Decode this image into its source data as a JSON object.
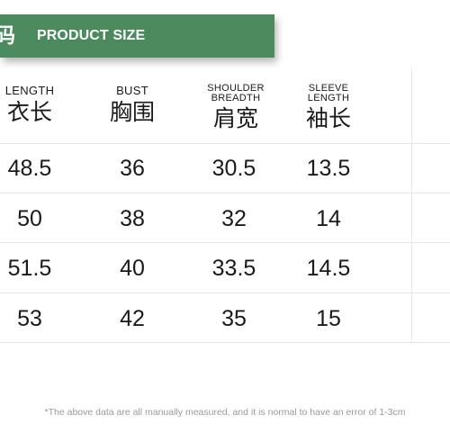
{
  "header": {
    "title_cn": "码",
    "title_en": "PRODUCT SIZE",
    "banner_color": "#4a8a5c"
  },
  "columns": [
    {
      "en": "LENGTH",
      "cn": "衣长"
    },
    {
      "en": "BUST",
      "cn": "胸围"
    },
    {
      "en_line1": "SHOULDER",
      "en_line2": "BREADTH",
      "cn": "肩宽"
    },
    {
      "en_line1": "SLEEVE",
      "en_line2": "LENGTH",
      "cn": "袖长"
    }
  ],
  "rows": [
    [
      "48.5",
      "36",
      "30.5",
      "13.5"
    ],
    [
      "50",
      "38",
      "32",
      "14"
    ],
    [
      "51.5",
      "40",
      "33.5",
      "14.5"
    ],
    [
      "53",
      "42",
      "35",
      "15"
    ]
  ],
  "note": "*The above data are all manually measured, and it is normal to have an error of 1-3cm"
}
